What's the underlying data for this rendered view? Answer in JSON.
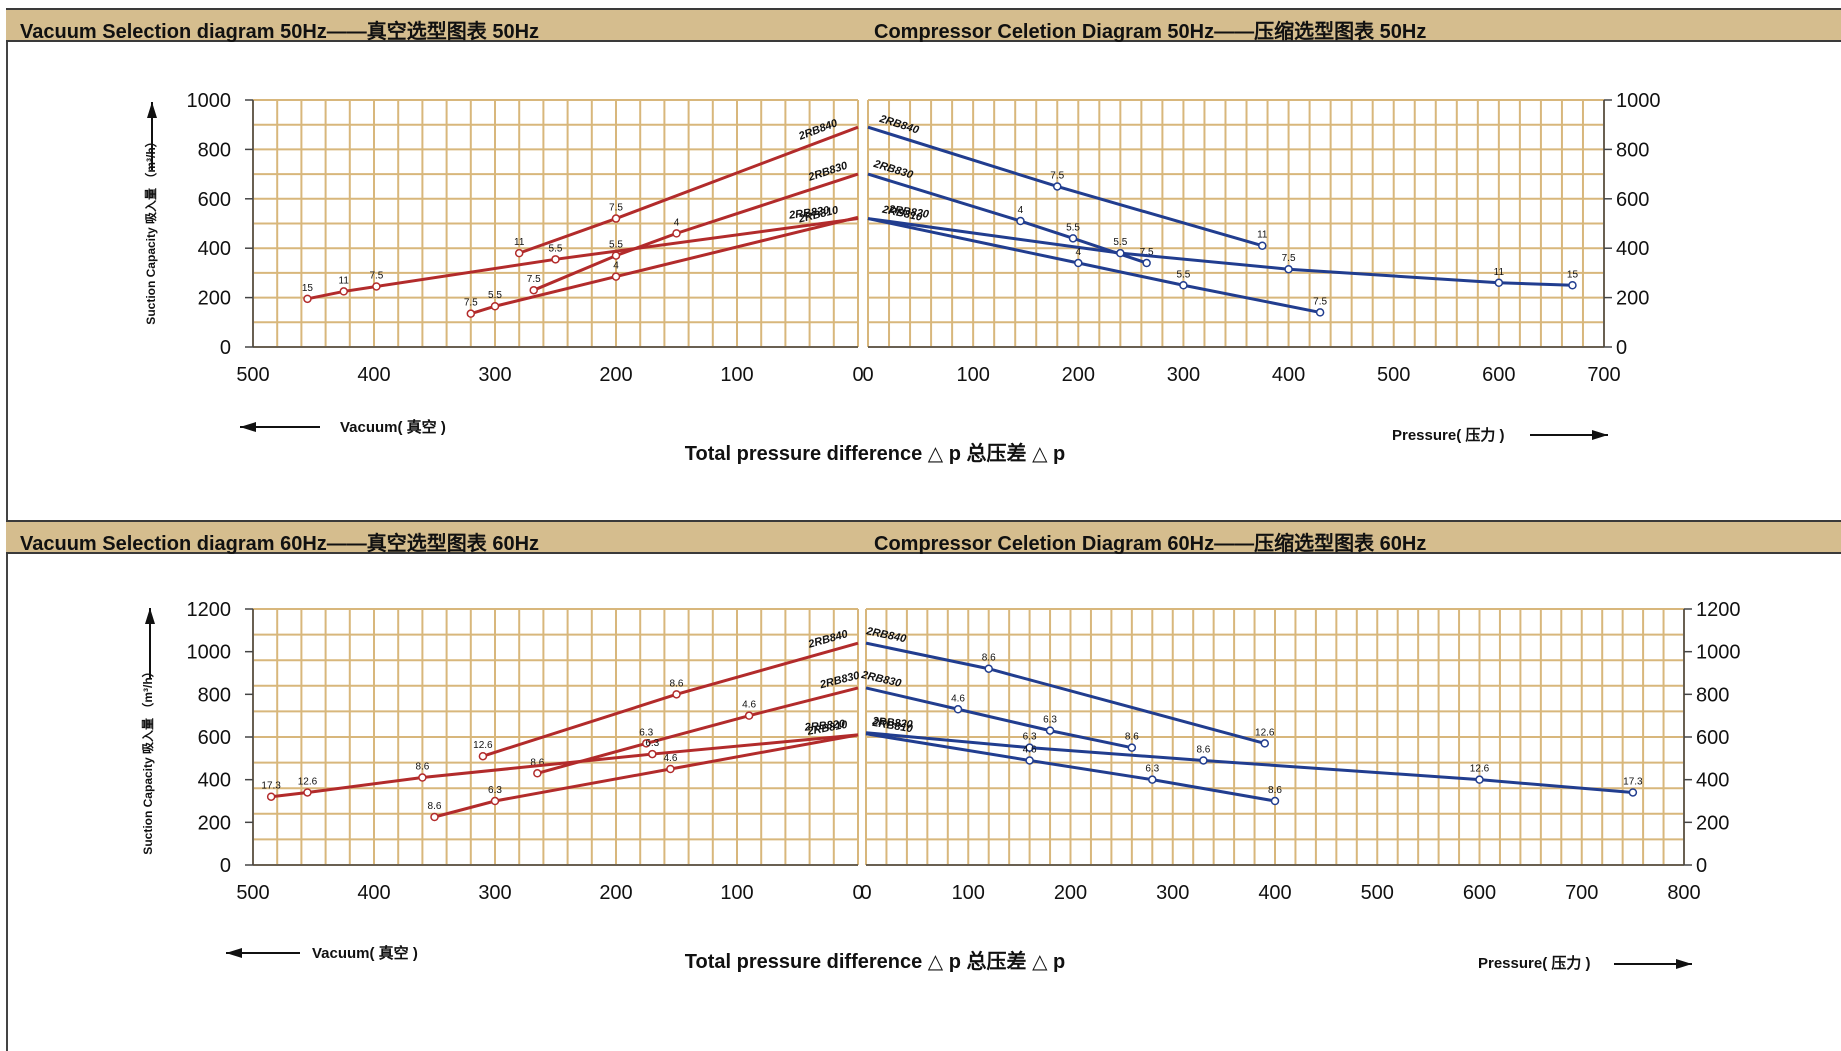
{
  "colors": {
    "band": "#d5bd8e",
    "grid": "#d8b77c",
    "vacuum": "#b22b2b",
    "pressure": "#213d8f"
  },
  "sections": [
    {
      "title_vacuum": "Vacuum Selection diagram 50Hz——真空选型图表 50Hz",
      "title_compressor": "Compressor Celetion Diagram 50Hz——压缩选型图表 50Hz"
    },
    {
      "title_vacuum": "Vacuum Selection diagram 60Hz——真空选型图表 60Hz",
      "title_compressor": "Compressor Celetion Diagram 60Hz——压缩选型图表 60Hz"
    }
  ],
  "chart_data": [
    {
      "type": "line",
      "title": "Vacuum Selection diagram 50Hz——真空选型图表 50Hz",
      "ylabel": "Suction Capacity 吸入量 （m³/h）",
      "xlabel": "Total pressure difference △ p 总压差 △ p",
      "direction_label": "Vacuum( 真空 )",
      "x_reversed": true,
      "xlim": [
        500,
        0
      ],
      "xticks": [
        500,
        400,
        300,
        200,
        100,
        0
      ],
      "ylim": [
        0,
        1000
      ],
      "yticks": [
        0,
        200,
        400,
        600,
        800,
        1000
      ],
      "grid": true,
      "series": [
        {
          "name": "2RB840",
          "x": [
            280,
            200,
            0
          ],
          "y": [
            380,
            520,
            890
          ],
          "point_labels": [
            "11",
            "7.5",
            ""
          ]
        },
        {
          "name": "2RB830",
          "x": [
            268,
            200,
            150,
            0
          ],
          "y": [
            230,
            370,
            460,
            700
          ],
          "point_labels": [
            "7.5",
            "5.5",
            "4",
            ""
          ]
        },
        {
          "name": "2RB820",
          "x": [
            455,
            425,
            398,
            250,
            0
          ],
          "y": [
            195,
            225,
            245,
            355,
            520
          ],
          "point_labels": [
            "15",
            "11",
            "7.5",
            "5.5",
            ""
          ]
        },
        {
          "name": "2RB810",
          "x": [
            320,
            300,
            200,
            0
          ],
          "y": [
            135,
            165,
            285,
            525
          ],
          "point_labels": [
            "7.5",
            "5.5",
            "4",
            ""
          ]
        }
      ]
    },
    {
      "type": "line",
      "title": "Compressor Celetion Diagram 50Hz——压缩选型图表 50Hz",
      "xlabel": "Total pressure difference △ p 总压差 △ p",
      "direction_label": "Pressure( 压力 )",
      "xlim": [
        0,
        700
      ],
      "xticks": [
        0,
        100,
        200,
        300,
        400,
        500,
        600,
        700
      ],
      "ylim": [
        0,
        1000
      ],
      "yticks": [
        0,
        200,
        400,
        600,
        800,
        1000
      ],
      "grid": true,
      "series": [
        {
          "name": "2RB840",
          "x": [
            0,
            180,
            375
          ],
          "y": [
            890,
            650,
            410
          ],
          "point_labels": [
            "",
            "7.5",
            "11"
          ]
        },
        {
          "name": "2RB830",
          "x": [
            0,
            145,
            195,
            265
          ],
          "y": [
            700,
            510,
            440,
            340
          ],
          "point_labels": [
            "",
            "4",
            "5.5",
            "7.5"
          ]
        },
        {
          "name": "2RB820",
          "x": [
            0,
            240,
            400,
            600,
            670
          ],
          "y": [
            520,
            380,
            315,
            260,
            250
          ],
          "point_labels": [
            "",
            "5.5",
            "7.5",
            "11",
            "15"
          ]
        },
        {
          "name": "2RB810",
          "x": [
            0,
            200,
            300,
            430
          ],
          "y": [
            520,
            340,
            250,
            140
          ],
          "point_labels": [
            "",
            "4",
            "5.5",
            "7.5"
          ]
        }
      ]
    },
    {
      "type": "line",
      "title": "Vacuum Selection diagram 60Hz——真空选型图表 60Hz",
      "ylabel": "Suction Capacity 吸入量 （m³/h）",
      "xlabel": "Total pressure difference △ p 总压差 △ p",
      "direction_label": "Vacuum( 真空 )",
      "x_reversed": true,
      "xlim": [
        500,
        0
      ],
      "xticks": [
        500,
        400,
        300,
        200,
        100,
        0
      ],
      "ylim": [
        0,
        1200
      ],
      "yticks": [
        0,
        200,
        400,
        600,
        800,
        1000,
        1200
      ],
      "grid": true,
      "series": [
        {
          "name": "2RB840",
          "x": [
            310,
            150,
            0
          ],
          "y": [
            510,
            800,
            1040
          ],
          "point_labels": [
            "12.6",
            "8.6",
            ""
          ]
        },
        {
          "name": "2RB830",
          "x": [
            265,
            175,
            90,
            0
          ],
          "y": [
            430,
            570,
            700,
            830
          ],
          "point_labels": [
            "8.6",
            "6.3",
            "4.6",
            ""
          ]
        },
        {
          "name": "2RB820",
          "x": [
            485,
            455,
            360,
            170,
            0
          ],
          "y": [
            320,
            340,
            410,
            520,
            610
          ],
          "point_labels": [
            "17.3",
            "12.6",
            "8.6",
            "6.3",
            ""
          ]
        },
        {
          "name": "2RB810",
          "x": [
            350,
            300,
            155,
            0
          ],
          "y": [
            225,
            300,
            450,
            610
          ],
          "point_labels": [
            "8.6",
            "6.3",
            "4.6",
            ""
          ]
        }
      ]
    },
    {
      "type": "line",
      "title": "Compressor Celetion Diagram 60Hz——压缩选型图表 60Hz",
      "xlabel": "Total pressure difference △ p 总压差 △ p",
      "direction_label": "Pressure( 压力 )",
      "xlim": [
        0,
        800
      ],
      "xticks": [
        0,
        100,
        200,
        300,
        400,
        500,
        600,
        700,
        800
      ],
      "ylim": [
        0,
        1200
      ],
      "yticks": [
        0,
        200,
        400,
        600,
        800,
        1000,
        1200
      ],
      "grid": true,
      "series": [
        {
          "name": "2RB840",
          "x": [
            0,
            120,
            390
          ],
          "y": [
            1040,
            920,
            570
          ],
          "point_labels": [
            "",
            "8.6",
            "12.6"
          ]
        },
        {
          "name": "2RB830",
          "x": [
            0,
            90,
            180,
            260
          ],
          "y": [
            830,
            730,
            630,
            550
          ],
          "point_labels": [
            "",
            "4.6",
            "6.3",
            "8.6"
          ]
        },
        {
          "name": "2RB820",
          "x": [
            0,
            160,
            330,
            600,
            750
          ],
          "y": [
            620,
            550,
            490,
            400,
            340
          ],
          "point_labels": [
            "",
            "6.3",
            "8.6",
            "12.6",
            "17.3"
          ]
        },
        {
          "name": "2RB810",
          "x": [
            0,
            160,
            280,
            400
          ],
          "y": [
            615,
            490,
            400,
            300
          ],
          "point_labels": [
            "",
            "4.6",
            "6.3",
            "8.6"
          ]
        }
      ]
    }
  ]
}
